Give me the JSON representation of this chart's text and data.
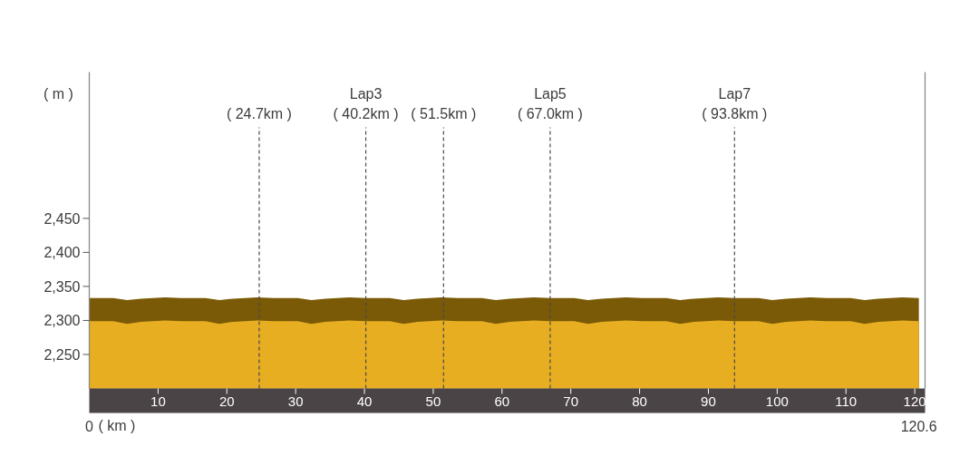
{
  "chart_data": {
    "type": "area",
    "ylabel": "( m )",
    "xlabel": "( km )",
    "x": [
      0,
      3.5,
      5.5,
      7.5,
      11,
      13.4,
      16.9,
      18.9,
      20.9,
      24.4,
      26.8,
      30.3,
      32.3,
      34.3,
      37.8,
      40.2,
      43.7,
      45.7,
      47.7,
      51.2,
      53.6,
      57.1,
      59.1,
      61.1,
      64.6,
      67.0,
      70.5,
      72.5,
      74.5,
      78.0,
      80.4,
      83.9,
      85.9,
      87.9,
      91.4,
      93.8,
      97.3,
      99.3,
      101.3,
      104.8,
      107.2,
      110.7,
      112.7,
      114.7,
      118.2,
      120.6
    ],
    "series": [
      {
        "color": "#7a5a06",
        "values": [
          2333,
          2333,
          2330,
          2332,
          2334,
          2333,
          2333,
          2330,
          2332,
          2334,
          2333,
          2333,
          2330,
          2332,
          2334,
          2333,
          2333,
          2330,
          2332,
          2334,
          2333,
          2333,
          2330,
          2332,
          2334,
          2333,
          2333,
          2330,
          2332,
          2334,
          2333,
          2333,
          2330,
          2332,
          2334,
          2333,
          2333,
          2330,
          2332,
          2334,
          2333,
          2333,
          2330,
          2332,
          2334,
          2333
        ]
      },
      {
        "color": "#e8ae22",
        "values": [
          2299,
          2299,
          2295,
          2298,
          2300,
          2299,
          2299,
          2295,
          2298,
          2300,
          2299,
          2299,
          2295,
          2298,
          2300,
          2299,
          2299,
          2295,
          2298,
          2300,
          2299,
          2299,
          2295,
          2298,
          2300,
          2299,
          2299,
          2295,
          2298,
          2300,
          2299,
          2299,
          2295,
          2298,
          2300,
          2299,
          2299,
          2295,
          2298,
          2300,
          2299,
          2299,
          2295,
          2298,
          2300,
          2299
        ]
      }
    ],
    "xlim": [
      0,
      121.5
    ],
    "xticks": [
      10,
      20,
      30,
      40,
      50,
      60,
      70,
      80,
      90,
      100,
      110,
      120
    ],
    "ylim": [
      2200,
      2665
    ],
    "yticks": [
      {
        "value": 2250,
        "label": "2,250"
      },
      {
        "value": 2300,
        "label": "2,300"
      },
      {
        "value": 2350,
        "label": "2,350"
      },
      {
        "value": 2400,
        "label": "2,400"
      },
      {
        "value": 2450,
        "label": "2,450"
      }
    ],
    "annotations": [
      {
        "text": "0",
        "x": 0,
        "y": 2200
      },
      {
        "text": "120.6",
        "x": 120.6,
        "y": 2200
      }
    ],
    "ref_lines": [
      {
        "axis": "x",
        "value": 24.7,
        "label": "( 24.7km )",
        "color": "#4a4a4a",
        "line_style": "dashed"
      },
      {
        "axis": "x",
        "value": 40.2,
        "label": "Lap3\n( 40.2km )",
        "color": "#4a4a4a",
        "line_style": "dashed"
      },
      {
        "axis": "x",
        "value": 51.5,
        "label": "( 51.5km )",
        "color": "#4a4a4a",
        "line_style": "dashed"
      },
      {
        "axis": "x",
        "value": 67.0,
        "label": "Lap5\n( 67.0km )",
        "color": "#4a4a4a",
        "line_style": "dashed"
      },
      {
        "axis": "x",
        "value": 93.8,
        "label": "Lap7\n( 93.8km )",
        "color": "#4a4a4a",
        "line_style": "dashed"
      }
    ]
  }
}
